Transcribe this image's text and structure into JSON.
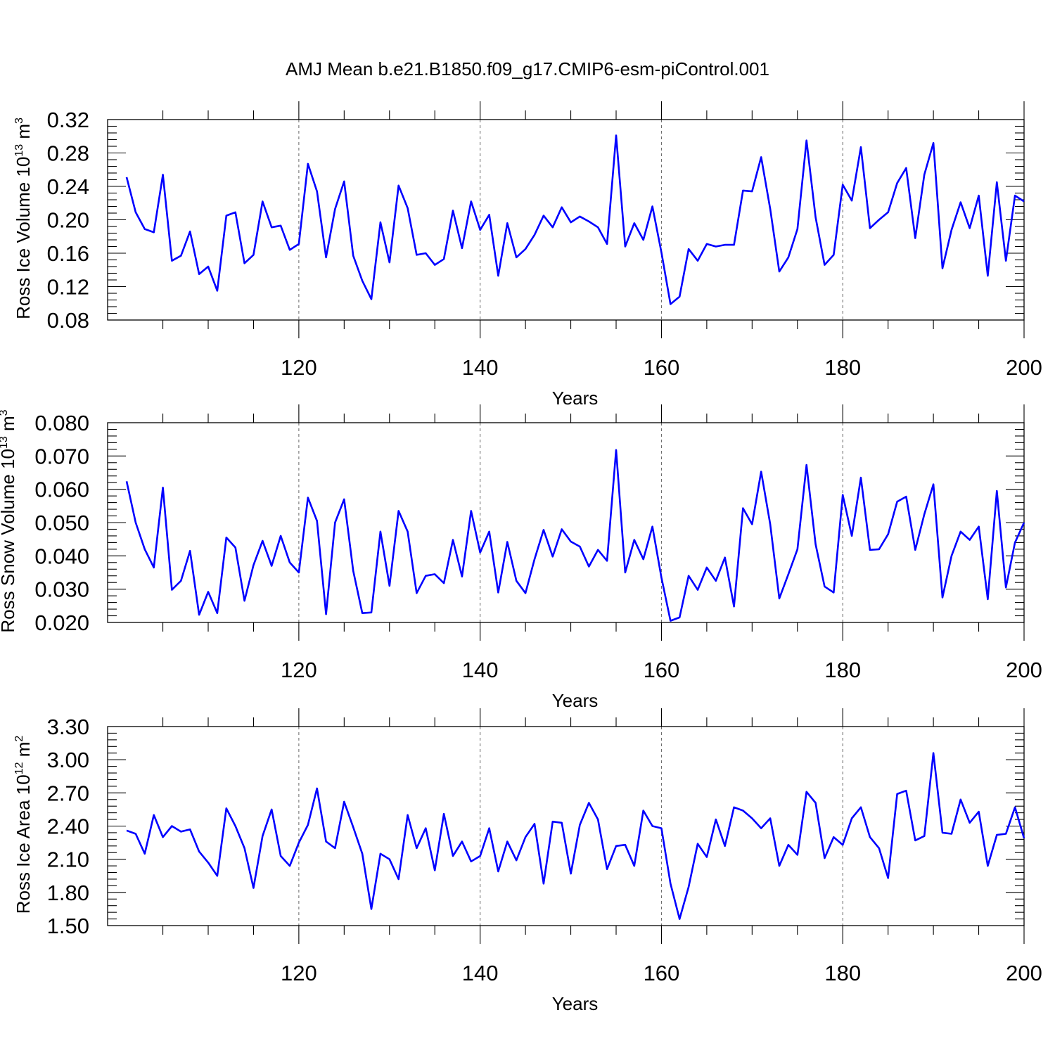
{
  "figure": {
    "title": "AMJ Mean b.e21.B1850.f09_g17.CMIP6-esm-piControl.001"
  },
  "chart_data": [
    {
      "type": "line",
      "xlabel": "Years",
      "ylabel": "Ross Ice Volume 10",
      "ylabel_exp": "13",
      "ylabel_unit": " m",
      "ylabel_unit_exp": "3",
      "xlim": [
        101,
        200
      ],
      "ylim": [
        0.08,
        0.32
      ],
      "xticks": [
        120,
        140,
        160,
        180,
        200
      ],
      "yticks": [
        "0.08",
        "0.12",
        "0.16",
        "0.20",
        "0.24",
        "0.28",
        "0.32"
      ],
      "grid": "dashed vertical at major x ticks",
      "color": "#0000ff",
      "x_start": 101,
      "values": [
        0.251,
        0.209,
        0.189,
        0.185,
        0.254,
        0.151,
        0.157,
        0.186,
        0.135,
        0.144,
        0.115,
        0.205,
        0.209,
        0.148,
        0.158,
        0.222,
        0.191,
        0.193,
        0.164,
        0.171,
        0.267,
        0.234,
        0.155,
        0.213,
        0.246,
        0.157,
        0.127,
        0.105,
        0.197,
        0.149,
        0.241,
        0.214,
        0.158,
        0.16,
        0.146,
        0.153,
        0.211,
        0.166,
        0.222,
        0.188,
        0.206,
        0.133,
        0.196,
        0.155,
        0.165,
        0.182,
        0.205,
        0.191,
        0.215,
        0.197,
        0.204,
        0.198,
        0.191,
        0.171,
        0.301,
        0.168,
        0.196,
        0.176,
        0.216,
        0.161,
        0.099,
        0.108,
        0.165,
        0.151,
        0.171,
        0.168,
        0.17,
        0.17,
        0.235,
        0.234,
        0.275,
        0.213,
        0.138,
        0.155,
        0.189,
        0.295,
        0.203,
        0.146,
        0.158,
        0.242,
        0.223,
        0.287,
        0.19,
        0.2,
        0.209,
        0.244,
        0.262,
        0.178,
        0.254,
        0.292,
        0.142,
        0.188,
        0.221,
        0.19,
        0.229,
        0.133,
        0.245,
        0.151,
        0.229,
        0.222
      ]
    },
    {
      "type": "line",
      "xlabel": "Years",
      "ylabel": "Ross Snow Volume 10",
      "ylabel_exp": "13",
      "ylabel_unit": " m",
      "ylabel_unit_exp": "3",
      "xlim": [
        101,
        200
      ],
      "ylim": [
        0.02,
        0.08
      ],
      "xticks": [
        120,
        140,
        160,
        180,
        200
      ],
      "yticks": [
        "0.020",
        "0.030",
        "0.040",
        "0.050",
        "0.060",
        "0.070",
        "0.080"
      ],
      "grid": "dashed vertical at major x ticks",
      "color": "#0000ff",
      "x_start": 101,
      "values": [
        0.0624,
        0.05,
        0.042,
        0.0365,
        0.0605,
        0.0298,
        0.0325,
        0.0415,
        0.0223,
        0.0292,
        0.0228,
        0.0455,
        0.0425,
        0.0265,
        0.0372,
        0.0445,
        0.037,
        0.046,
        0.038,
        0.035,
        0.0575,
        0.0505,
        0.0225,
        0.05,
        0.057,
        0.0355,
        0.0228,
        0.023,
        0.0473,
        0.031,
        0.0535,
        0.0473,
        0.0288,
        0.034,
        0.0345,
        0.0318,
        0.0448,
        0.0338,
        0.0535,
        0.041,
        0.0473,
        0.029,
        0.0442,
        0.0325,
        0.0288,
        0.039,
        0.0478,
        0.0398,
        0.048,
        0.0443,
        0.0428,
        0.0368,
        0.0418,
        0.0385,
        0.0718,
        0.035,
        0.0448,
        0.039,
        0.0488,
        0.0335,
        0.0205,
        0.0215,
        0.034,
        0.0298,
        0.0365,
        0.0325,
        0.0395,
        0.0248,
        0.0543,
        0.0495,
        0.0653,
        0.0495,
        0.0272,
        0.0345,
        0.042,
        0.0673,
        0.0435,
        0.0308,
        0.029,
        0.0583,
        0.046,
        0.0635,
        0.0418,
        0.042,
        0.0465,
        0.0563,
        0.0578,
        0.0418,
        0.0525,
        0.0615,
        0.0275,
        0.04,
        0.0473,
        0.0448,
        0.0488,
        0.027,
        0.0595,
        0.0305,
        0.044,
        0.05
      ]
    },
    {
      "type": "line",
      "xlabel": "Years",
      "ylabel": "Ross Ice Area 10",
      "ylabel_exp": "12",
      "ylabel_unit": " m",
      "ylabel_unit_exp": "2",
      "xlim": [
        101,
        200
      ],
      "ylim": [
        1.5,
        3.3
      ],
      "xticks": [
        120,
        140,
        160,
        180,
        200
      ],
      "yticks": [
        "1.50",
        "1.80",
        "2.10",
        "2.40",
        "2.70",
        "3.00",
        "3.30"
      ],
      "grid": "dashed vertical at major x ticks",
      "color": "#0000ff",
      "x_start": 101,
      "values": [
        2.36,
        2.33,
        2.15,
        2.5,
        2.3,
        2.4,
        2.35,
        2.37,
        2.17,
        2.07,
        1.95,
        2.56,
        2.4,
        2.2,
        1.84,
        2.31,
        2.55,
        2.13,
        2.04,
        2.25,
        2.41,
        2.74,
        2.26,
        2.2,
        2.62,
        2.39,
        2.15,
        1.65,
        2.15,
        2.1,
        1.92,
        2.5,
        2.2,
        2.38,
        2.0,
        2.51,
        2.13,
        2.26,
        2.08,
        2.13,
        2.38,
        1.99,
        2.26,
        2.09,
        2.3,
        2.42,
        1.88,
        2.44,
        2.43,
        1.97,
        2.41,
        2.61,
        2.46,
        2.01,
        2.22,
        2.23,
        2.04,
        2.54,
        2.4,
        2.38,
        1.88,
        1.56,
        1.85,
        2.24,
        2.12,
        2.46,
        2.22,
        2.57,
        2.54,
        2.47,
        2.38,
        2.47,
        2.04,
        2.23,
        2.14,
        2.71,
        2.61,
        2.11,
        2.3,
        2.23,
        2.47,
        2.57,
        2.3,
        2.2,
        1.93,
        2.69,
        2.72,
        2.27,
        2.31,
        3.06,
        2.34,
        2.33,
        2.64,
        2.43,
        2.53,
        2.04,
        2.32,
        2.33,
        2.57,
        2.29
      ]
    }
  ]
}
